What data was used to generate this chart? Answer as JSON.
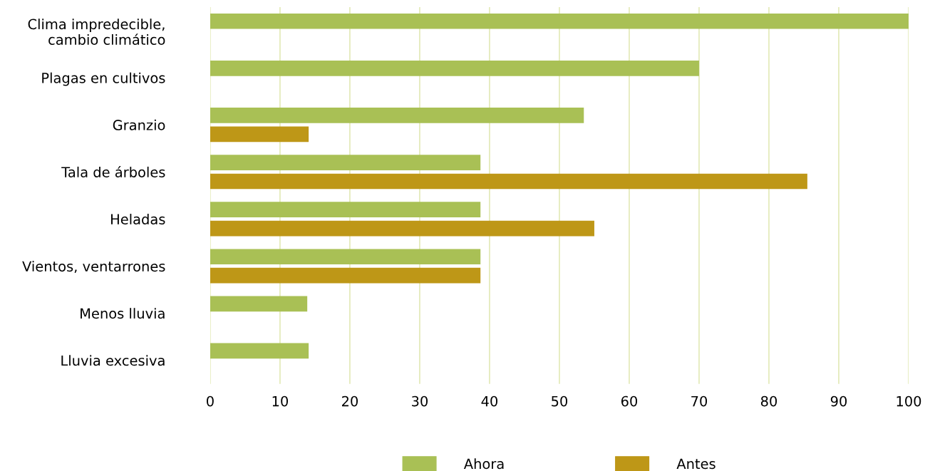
{
  "chart_data": {
    "type": "bar",
    "orientation": "horizontal",
    "categories": [
      "Clima impredecible,\ncambio climático",
      "Plagas en cultivos",
      "Granzio",
      "Tala de árboles",
      "Heladas",
      "Vientos, ventarrones",
      "Menos lluvia",
      "Lluvia excesiva"
    ],
    "series": [
      {
        "name": "Ahora",
        "color": "#a9c055",
        "values": [
          100,
          70,
          53.5,
          38.7,
          38.7,
          38.7,
          13.9,
          14.1
        ]
      },
      {
        "name": "Antes",
        "color": "#be9717",
        "values": [
          null,
          null,
          14.1,
          85.5,
          55,
          38.7,
          null,
          null
        ]
      }
    ],
    "xlim": [
      0,
      100
    ],
    "xticks": [
      0,
      10,
      20,
      30,
      40,
      50,
      60,
      70,
      80,
      90,
      100
    ],
    "grid": "x",
    "legend": "bottom"
  }
}
